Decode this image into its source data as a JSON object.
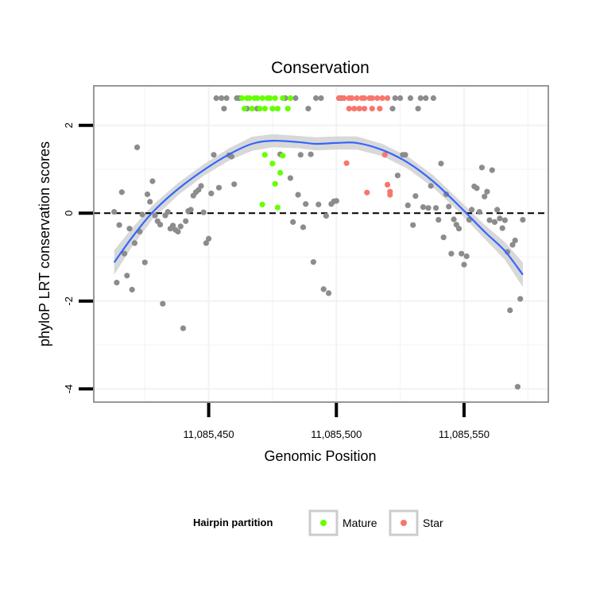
{
  "chart_data": {
    "type": "scatter",
    "title": "Conservation",
    "xlabel": "Genomic Position",
    "ylabel": "phyloP LRT conservation scores",
    "xlim": [
      11085405,
      11085583
    ],
    "ylim": [
      -4.3,
      2.9
    ],
    "x_ticks": [
      {
        "value": 11085450,
        "label": "11,085,450"
      },
      {
        "value": 11085500,
        "label": "11,085,500"
      },
      {
        "value": 11085550,
        "label": "11,085,550"
      }
    ],
    "y_ticks": [
      {
        "value": -4,
        "label": "-4"
      },
      {
        "value": -2,
        "label": "-2"
      },
      {
        "value": 0,
        "label": "0"
      },
      {
        "value": 2,
        "label": "2"
      }
    ],
    "reference_line": {
      "y": 0,
      "style": "dashed"
    },
    "legend": {
      "title": "Hairpin partition",
      "position": "bottom",
      "entries": [
        {
          "label": "Mature",
          "color": "#66ff00"
        },
        {
          "label": "Star",
          "color": "#f8766d"
        }
      ]
    },
    "colors": {
      "Other": "#8c8c8c",
      "Mature": "#66ff00",
      "Star": "#f8766d",
      "smooth": "#3366ff",
      "band": "#d4d4d4",
      "grid": "#f2f2f2",
      "frame": "#7f7f7f"
    },
    "series": [
      {
        "name": "Other",
        "points": [
          [
            11085413,
            0.03
          ],
          [
            11085414,
            -1.58
          ],
          [
            11085415,
            -0.27
          ],
          [
            11085416,
            0.48
          ],
          [
            11085417,
            -0.92
          ],
          [
            11085418,
            -1.42
          ],
          [
            11085419,
            -0.35
          ],
          [
            11085420,
            -1.74
          ],
          [
            11085421,
            -0.68
          ],
          [
            11085422,
            1.5
          ],
          [
            11085423,
            -0.42
          ],
          [
            11085424,
            -0.03
          ],
          [
            11085425,
            -1.12
          ],
          [
            11085426,
            0.43
          ],
          [
            11085427,
            0.26
          ],
          [
            11085428,
            0.73
          ],
          [
            11085429,
            -0.05
          ],
          [
            11085430,
            -0.18
          ],
          [
            11085431,
            -0.26
          ],
          [
            11085432,
            -2.06
          ],
          [
            11085433,
            -0.05
          ],
          [
            11085434,
            0.03
          ],
          [
            11085435,
            -0.35
          ],
          [
            11085436,
            -0.28
          ],
          [
            11085437,
            -0.38
          ],
          [
            11085438,
            -0.42
          ],
          [
            11085439,
            -0.3
          ],
          [
            11085440,
            -2.62
          ],
          [
            11085441,
            -0.18
          ],
          [
            11085442,
            0.05
          ],
          [
            11085443,
            0.08
          ],
          [
            11085444,
            0.4
          ],
          [
            11085445,
            0.48
          ],
          [
            11085446,
            0.53
          ],
          [
            11085447,
            0.62
          ],
          [
            11085448,
            0.02
          ],
          [
            11085449,
            -0.68
          ],
          [
            11085450,
            -0.58
          ],
          [
            11085451,
            0.45
          ],
          [
            11085452,
            1.33
          ],
          [
            11085453,
            2.62
          ],
          [
            11085454,
            0.58
          ],
          [
            11085455,
            2.62
          ],
          [
            11085456,
            2.38
          ],
          [
            11085457,
            2.62
          ],
          [
            11085458,
            1.32
          ],
          [
            11085459,
            1.29
          ],
          [
            11085460,
            0.66
          ],
          [
            11085461,
            2.62
          ],
          [
            11085462,
            2.62
          ],
          [
            11085465,
            2.38
          ],
          [
            11085469,
            2.38
          ],
          [
            11085478,
            1.34
          ],
          [
            11085480,
            2.62
          ],
          [
            11085482,
            0.8
          ],
          [
            11085483,
            -0.2
          ],
          [
            11085484,
            2.62
          ],
          [
            11085485,
            0.42
          ],
          [
            11085486,
            1.33
          ],
          [
            11085487,
            -0.32
          ],
          [
            11085488,
            0.21
          ],
          [
            11085489,
            2.38
          ],
          [
            11085490,
            1.34
          ],
          [
            11085491,
            -1.11
          ],
          [
            11085492,
            2.62
          ],
          [
            11085493,
            0.2
          ],
          [
            11085494,
            2.62
          ],
          [
            11085495,
            -1.73
          ],
          [
            11085496,
            -0.06
          ],
          [
            11085497,
            -1.82
          ],
          [
            11085498,
            0.21
          ],
          [
            11085499,
            0.27
          ],
          [
            11085500,
            0.28
          ],
          [
            11085501,
            2.62
          ],
          [
            11085502,
            2.62
          ],
          [
            11085522,
            2.38
          ],
          [
            11085523,
            2.62
          ],
          [
            11085524,
            0.86
          ],
          [
            11085525,
            2.62
          ],
          [
            11085526,
            1.33
          ],
          [
            11085527,
            1.33
          ],
          [
            11085528,
            0.18
          ],
          [
            11085529,
            2.62
          ],
          [
            11085530,
            -0.27
          ],
          [
            11085531,
            0.39
          ],
          [
            11085532,
            2.38
          ],
          [
            11085533,
            2.62
          ],
          [
            11085534,
            0.14
          ],
          [
            11085535,
            2.62
          ],
          [
            11085536,
            0.12
          ],
          [
            11085537,
            0.62
          ],
          [
            11085538,
            2.62
          ],
          [
            11085539,
            0.12
          ],
          [
            11085540,
            -0.15
          ],
          [
            11085541,
            1.13
          ],
          [
            11085542,
            -0.55
          ],
          [
            11085543,
            0.43
          ],
          [
            11085544,
            0.15
          ],
          [
            11085545,
            -0.92
          ],
          [
            11085546,
            -0.14
          ],
          [
            11085547,
            -0.26
          ],
          [
            11085548,
            -0.35
          ],
          [
            11085549,
            -0.92
          ],
          [
            11085550,
            -1.17
          ],
          [
            11085551,
            -0.98
          ],
          [
            11085552,
            -0.15
          ],
          [
            11085553,
            0.08
          ],
          [
            11085554,
            0.61
          ],
          [
            11085555,
            0.57
          ],
          [
            11085556,
            0.03
          ],
          [
            11085557,
            1.04
          ],
          [
            11085558,
            0.38
          ],
          [
            11085559,
            0.49
          ],
          [
            11085560,
            -0.16
          ],
          [
            11085561,
            0.98
          ],
          [
            11085562,
            -0.2
          ],
          [
            11085563,
            0.08
          ],
          [
            11085564,
            -0.12
          ],
          [
            11085565,
            -0.34
          ],
          [
            11085566,
            -0.16
          ],
          [
            11085567,
            -0.88
          ],
          [
            11085568,
            -2.21
          ],
          [
            11085569,
            -0.72
          ],
          [
            11085570,
            -0.62
          ],
          [
            11085571,
            -3.95
          ],
          [
            11085572,
            -1.95
          ],
          [
            11085573,
            -0.15
          ]
        ]
      },
      {
        "name": "Mature",
        "points": [
          [
            11085463,
            2.62
          ],
          [
            11085464,
            2.38
          ],
          [
            11085465,
            2.62
          ],
          [
            11085466,
            2.62
          ],
          [
            11085467,
            2.38
          ],
          [
            11085468,
            2.62
          ],
          [
            11085469,
            2.62
          ],
          [
            11085470,
            2.38
          ],
          [
            11085471,
            2.62
          ],
          [
            11085471,
            0.2
          ],
          [
            11085472,
            1.33
          ],
          [
            11085472,
            2.38
          ],
          [
            11085473,
            2.62
          ],
          [
            11085474,
            2.62
          ],
          [
            11085475,
            2.38
          ],
          [
            11085475,
            1.13
          ],
          [
            11085476,
            0.67
          ],
          [
            11085476,
            2.62
          ],
          [
            11085477,
            2.38
          ],
          [
            11085477,
            0.13
          ],
          [
            11085478,
            0.92
          ],
          [
            11085479,
            1.31
          ],
          [
            11085479,
            2.62
          ],
          [
            11085481,
            2.38
          ],
          [
            11085482,
            2.62
          ]
        ]
      },
      {
        "name": "Star",
        "points": [
          [
            11085501,
            2.62
          ],
          [
            11085503,
            2.62
          ],
          [
            11085504,
            1.14
          ],
          [
            11085505,
            2.38
          ],
          [
            11085505,
            2.62
          ],
          [
            11085506,
            2.62
          ],
          [
            11085507,
            2.38
          ],
          [
            11085508,
            2.62
          ],
          [
            11085509,
            2.38
          ],
          [
            11085510,
            2.62
          ],
          [
            11085511,
            2.38
          ],
          [
            11085511,
            2.62
          ],
          [
            11085512,
            0.47
          ],
          [
            11085513,
            2.62
          ],
          [
            11085514,
            2.38
          ],
          [
            11085514,
            2.62
          ],
          [
            11085516,
            2.62
          ],
          [
            11085517,
            2.38
          ],
          [
            11085518,
            2.62
          ],
          [
            11085519,
            1.33
          ],
          [
            11085520,
            0.65
          ],
          [
            11085520,
            2.62
          ],
          [
            11085521,
            0.42
          ],
          [
            11085521,
            0.49
          ]
        ]
      }
    ],
    "smooth": {
      "method": "loess",
      "points": [
        [
          11085413,
          -1.12
        ],
        [
          11085420,
          -0.55
        ],
        [
          11085428,
          0.02
        ],
        [
          11085438,
          0.55
        ],
        [
          11085448,
          0.98
        ],
        [
          11085458,
          1.34
        ],
        [
          11085467,
          1.58
        ],
        [
          11085475,
          1.65
        ],
        [
          11085485,
          1.62
        ],
        [
          11085492,
          1.58
        ],
        [
          11085500,
          1.6
        ],
        [
          11085508,
          1.6
        ],
        [
          11085518,
          1.44
        ],
        [
          11085528,
          1.15
        ],
        [
          11085538,
          0.72
        ],
        [
          11085548,
          0.17
        ],
        [
          11085558,
          -0.42
        ],
        [
          11085566,
          -0.86
        ],
        [
          11085573,
          -1.4
        ]
      ],
      "se_half_width": [
        0.28,
        0.21,
        0.16,
        0.14,
        0.13,
        0.14,
        0.16,
        0.15,
        0.14,
        0.15,
        0.15,
        0.15,
        0.14,
        0.14,
        0.14,
        0.14,
        0.16,
        0.2,
        0.28
      ]
    }
  }
}
